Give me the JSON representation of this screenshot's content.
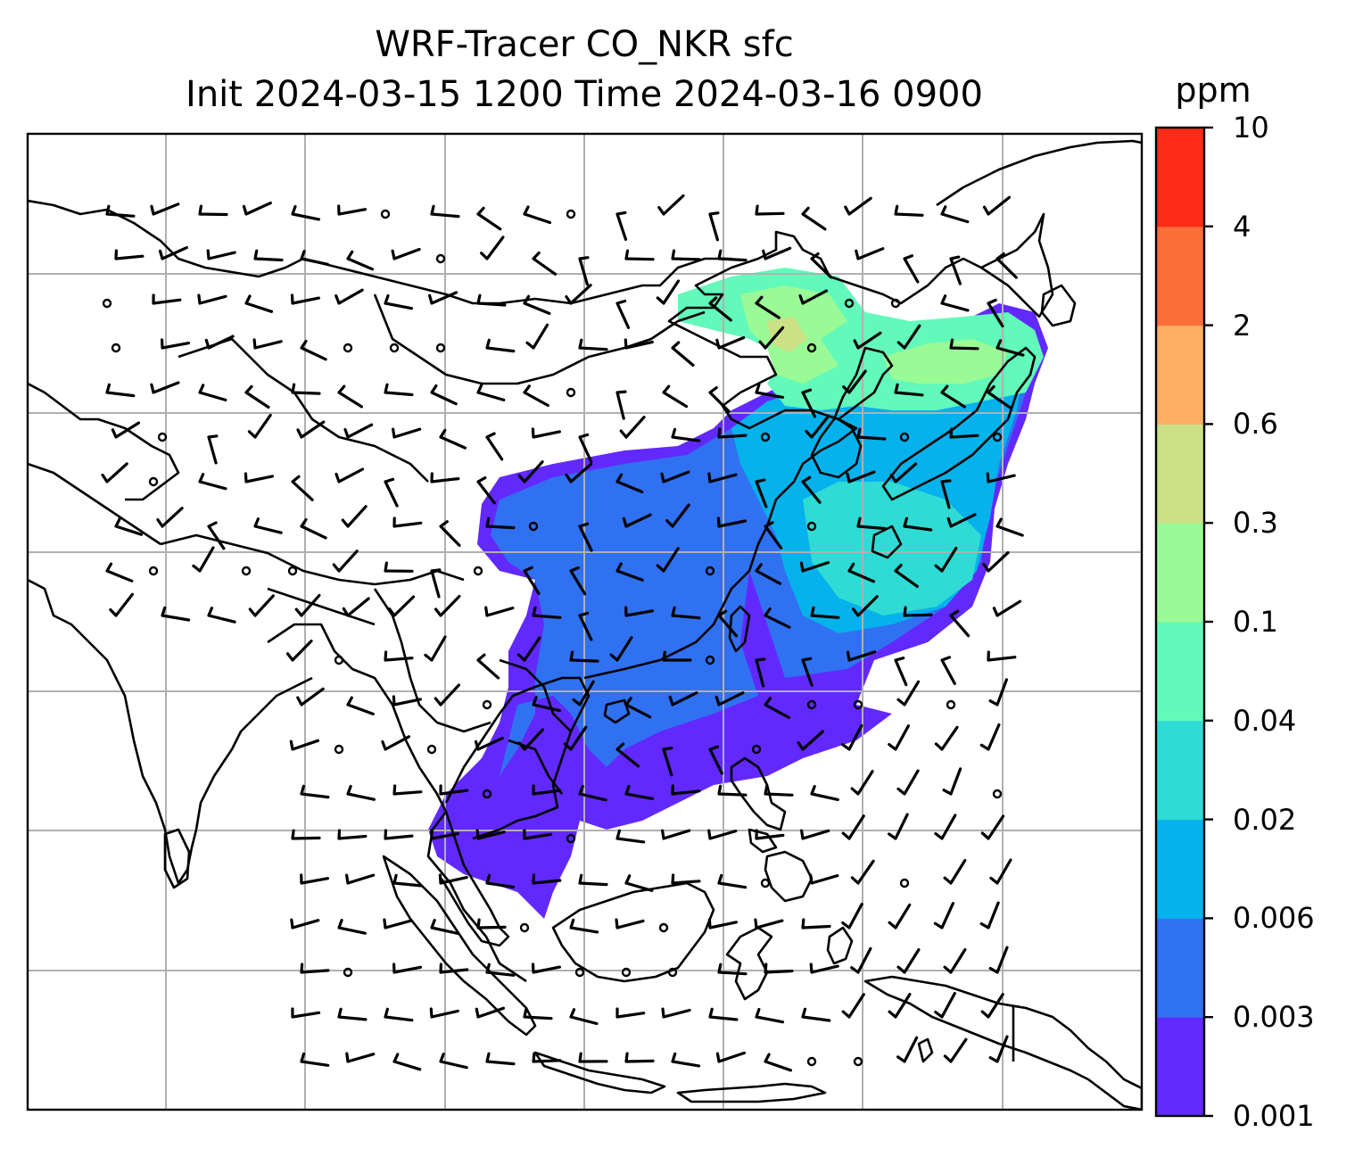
{
  "title_line1": "WRF-Tracer CO_NKR sfc",
  "title_line2": "Init 2024-03-15 1200 Time 2024-03-16 0900",
  "colorbar": {
    "unit": "ppm",
    "levels": [
      "0.001",
      "0.003",
      "0.006",
      "0.02",
      "0.04",
      "0.1",
      "0.3",
      "0.6",
      "2",
      "4",
      "10"
    ],
    "colors": [
      "#6229fd",
      "#3071f2",
      "#06b2ec",
      "#2fdbd4",
      "#62f9ba",
      "#9afa95",
      "#cce086",
      "#fdae62",
      "#fd6d3a",
      "#fe2b16"
    ]
  },
  "map": {
    "background": "#ffffff",
    "coastline_color": "#000000",
    "gridline_color": "#b0b0b0",
    "wind_barb_color": "#000000"
  }
}
